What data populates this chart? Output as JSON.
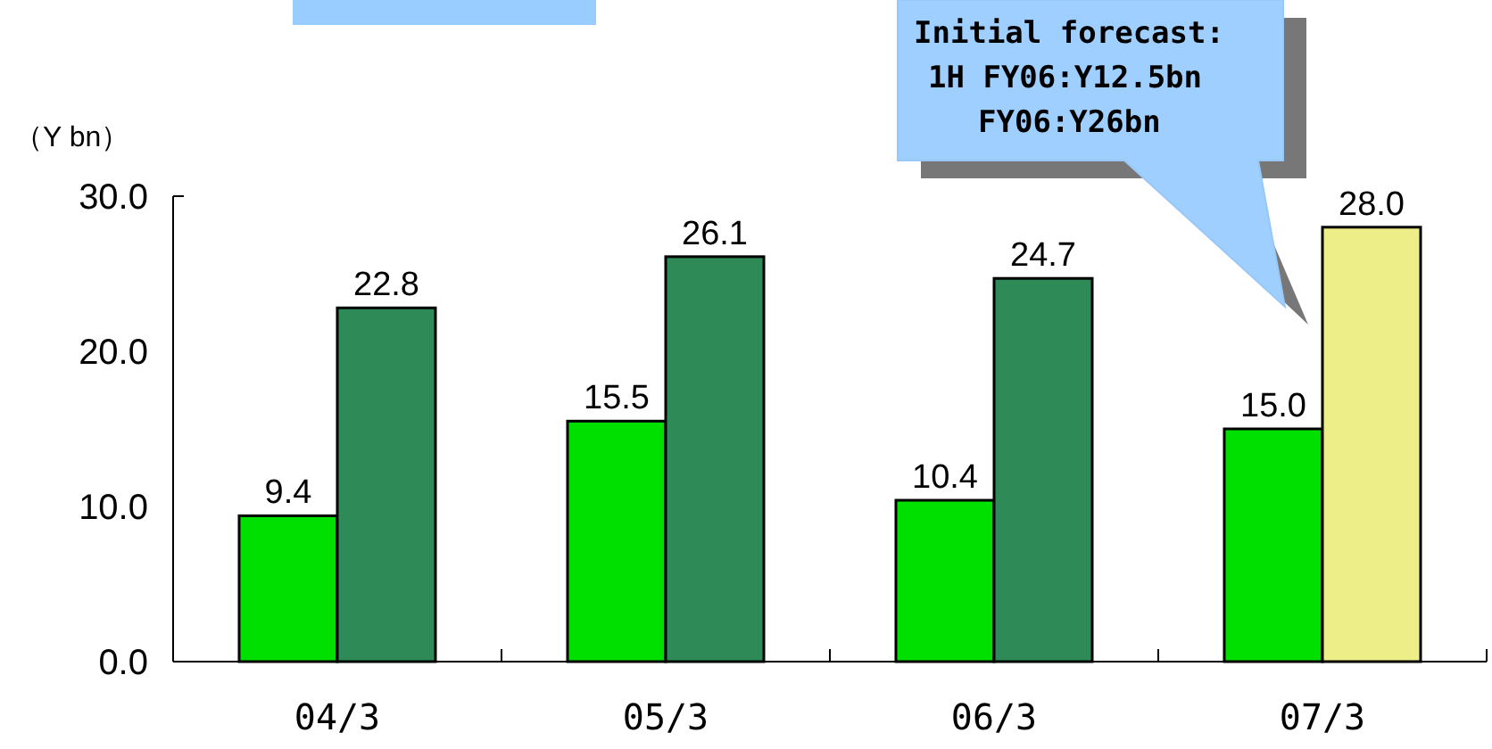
{
  "chart_data": {
    "type": "bar",
    "ylabel": "（Y bn）",
    "categories": [
      "04/3",
      "05/3",
      "06/3",
      "07/3"
    ],
    "series": [
      {
        "color": "#00e000",
        "values": [
          9.4,
          15.5,
          10.4,
          15.0
        ],
        "value_labels": [
          "9.4",
          "15.5",
          "10.4",
          "15.0"
        ]
      },
      {
        "colors": [
          "#2e8b57",
          "#2e8b57",
          "#2e8b57",
          "#eeee88"
        ],
        "values": [
          22.8,
          26.1,
          24.7,
          28.0
        ],
        "value_labels": [
          "22.8",
          "26.1",
          "24.7",
          "28.0"
        ]
      }
    ],
    "ylim": [
      0,
      30
    ],
    "yticks": [
      {
        "value": 0,
        "label": "0.0"
      },
      {
        "value": 10,
        "label": "10.0"
      },
      {
        "value": 20,
        "label": "20.0"
      },
      {
        "value": 30,
        "label": "30.0"
      }
    ],
    "grid": false,
    "annotations": [
      "Initial forecast:",
      "1H FY06:Y12.5bn",
      "FY06:Y26bn"
    ]
  }
}
